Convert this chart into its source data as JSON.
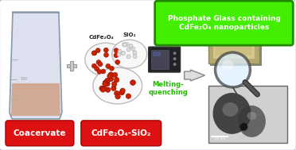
{
  "bg_color": "#e8e8e8",
  "border_color": "#aaaacc",
  "title_box_color": "#44ee00",
  "title_box_border": "#228800",
  "title_text": "Phosphate Glass containing\nCdFe₂O₄ nanoparticles",
  "label_coacervate": "Coacervate",
  "label_mixture": "CdFe₂O₄-SiO₂",
  "label_cdfe": "CdFe₂O₄",
  "label_sio2": "SiO₂",
  "label_process": "Melting-\nquenching",
  "red_box_color": "#dd1111",
  "red_box_border": "#aa0000",
  "np_color_red": "#cc2200",
  "np_border_red": "#881100",
  "np_color_gray": "#dddddd",
  "np_border_gray": "#aaaaaa",
  "beaker_body": "#dde0ee",
  "beaker_edge": "#8899aa",
  "beaker_liquid": "#cc9977",
  "ellipse_fill": "#f8f8f8",
  "ellipse_edge": "#bbbbbb",
  "plus_color": "#cccccc",
  "plus_edge": "#999999",
  "arrow_fill": "#dddddd",
  "arrow_edge": "#888888",
  "furnace_body": "#222222",
  "furnace_window": "#444455",
  "green_text": "#22bb00",
  "glass_outer": "#c8b87a",
  "glass_inner": "#d4c890",
  "tem_bg": "#bbbbbb",
  "white": "#ffffff"
}
